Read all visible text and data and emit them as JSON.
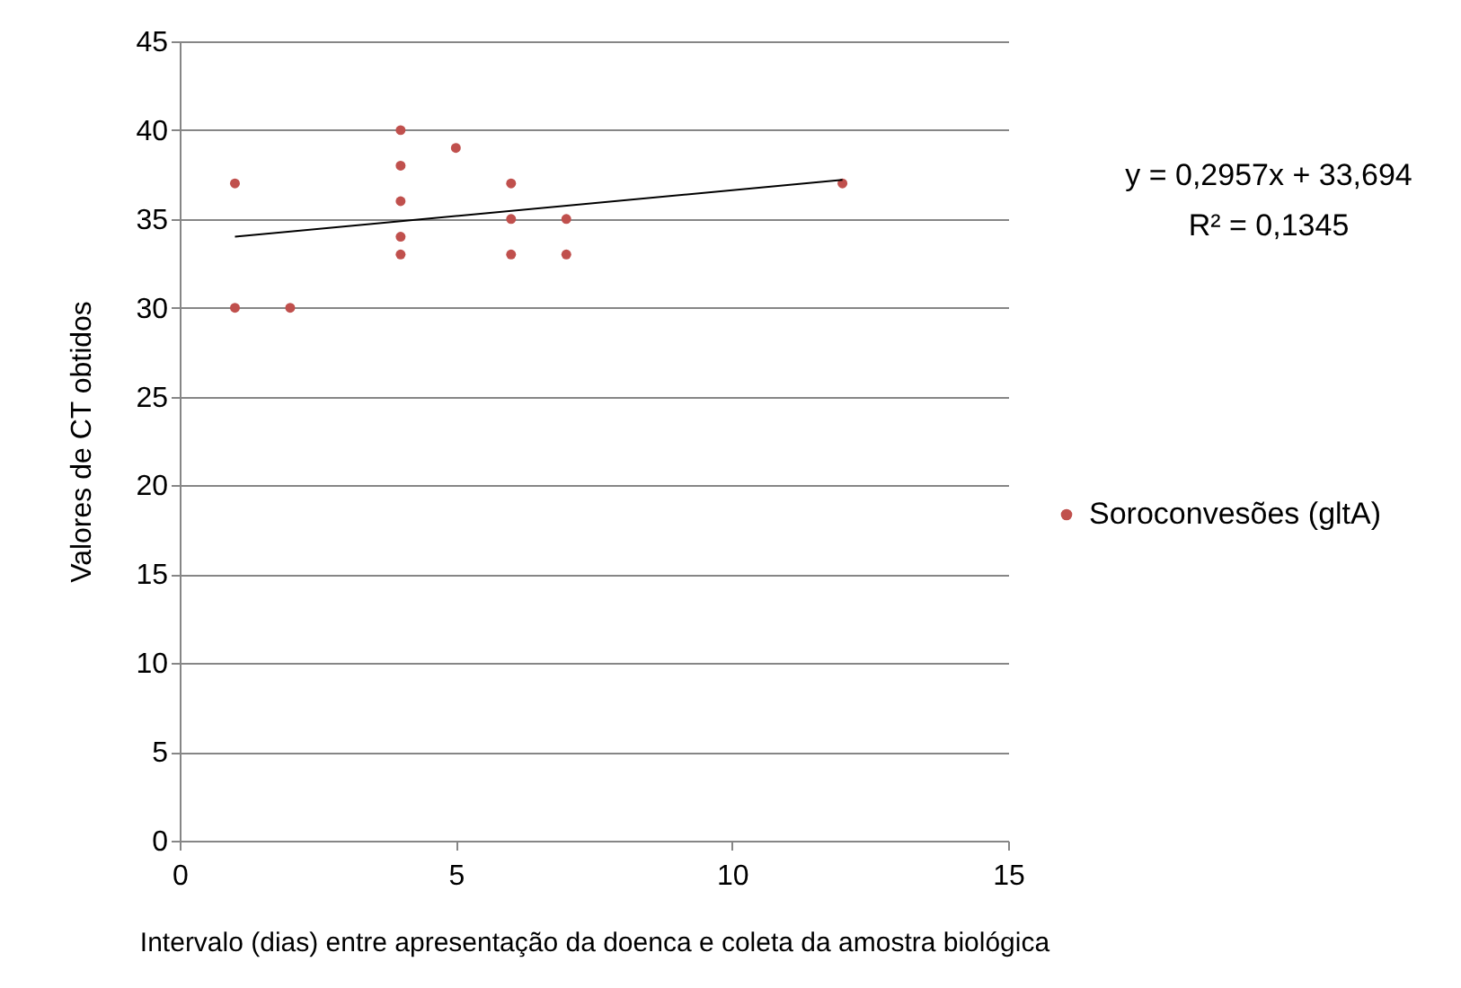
{
  "chart_data": {
    "type": "scatter",
    "xlabel": "Intervalo  (dias) entre apresentação  da doenca  e coleta da amostra biológica",
    "ylabel": "Valores de CT obtidos",
    "xlim": [
      0,
      15
    ],
    "xticks": [
      0,
      5,
      10,
      15
    ],
    "ylim": [
      0,
      45
    ],
    "yticks": [
      0,
      5,
      10,
      15,
      20,
      25,
      30,
      35,
      40,
      45
    ],
    "grid": "y",
    "legend": "right",
    "marker": "circle",
    "series": [
      {
        "name": "Soroconvesões (gltA)",
        "color": "#c0504d",
        "x": [
          1,
          1,
          2,
          4,
          4,
          4,
          4,
          4,
          5,
          6,
          6,
          6,
          7,
          7,
          12
        ],
        "values": [
          37,
          30,
          30,
          40,
          38,
          36,
          34,
          33,
          39,
          37,
          35,
          33,
          35,
          33,
          37
        ]
      },
      {
        "type": "line",
        "color": "#000000",
        "marker": "none",
        "x": [
          1,
          12
        ],
        "values": [
          34.0,
          37.2
        ]
      }
    ],
    "annotations": [
      "y = 0,2957x + 33,694",
      "R² = 0,1345"
    ]
  }
}
